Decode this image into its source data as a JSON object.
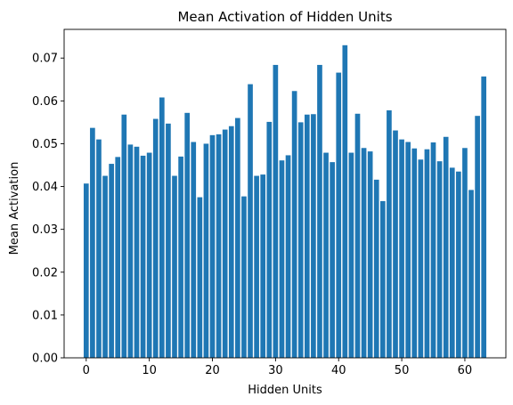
{
  "chart_data": {
    "type": "bar",
    "title": "Mean Activation of Hidden Units",
    "xlabel": "Hidden Units",
    "ylabel": "Mean Activation",
    "xlim": [
      -3.5,
      66.5
    ],
    "ylim": [
      0,
      0.0767
    ],
    "x_ticks": [
      0,
      10,
      20,
      30,
      40,
      50,
      60
    ],
    "y_ticks": [
      0.0,
      0.01,
      0.02,
      0.03,
      0.04,
      0.05,
      0.06,
      0.07
    ],
    "y_tick_labels": [
      "0.00",
      "0.01",
      "0.02",
      "0.03",
      "0.04",
      "0.05",
      "0.06",
      "0.07"
    ],
    "grid": false,
    "bar_color": "#1f77b4",
    "x": [
      0,
      1,
      2,
      3,
      4,
      5,
      6,
      7,
      8,
      9,
      10,
      11,
      12,
      13,
      14,
      15,
      16,
      17,
      18,
      19,
      20,
      21,
      22,
      23,
      24,
      25,
      26,
      27,
      28,
      29,
      30,
      31,
      32,
      33,
      34,
      35,
      36,
      37,
      38,
      39,
      40,
      41,
      42,
      43,
      44,
      45,
      46,
      47,
      48,
      49,
      50,
      51,
      52,
      53,
      54,
      55,
      56,
      57,
      58,
      59,
      60,
      61,
      62,
      63
    ],
    "values": [
      0.0407,
      0.0537,
      0.051,
      0.0425,
      0.0453,
      0.0469,
      0.0568,
      0.0498,
      0.0493,
      0.0472,
      0.0479,
      0.0558,
      0.0608,
      0.0547,
      0.0425,
      0.047,
      0.0572,
      0.0504,
      0.0375,
      0.05,
      0.052,
      0.0522,
      0.0533,
      0.0541,
      0.056,
      0.0377,
      0.0639,
      0.0425,
      0.0428,
      0.0551,
      0.0684,
      0.0461,
      0.0473,
      0.0623,
      0.055,
      0.0568,
      0.0569,
      0.0684,
      0.0479,
      0.0457,
      0.0666,
      0.073,
      0.0479,
      0.057,
      0.049,
      0.0482,
      0.0416,
      0.0366,
      0.0578,
      0.0531,
      0.051,
      0.0504,
      0.0489,
      0.0463,
      0.0487,
      0.0503,
      0.0459,
      0.0516,
      0.0444,
      0.0435,
      0.049,
      0.0392,
      0.0565,
      0.0657
    ]
  }
}
